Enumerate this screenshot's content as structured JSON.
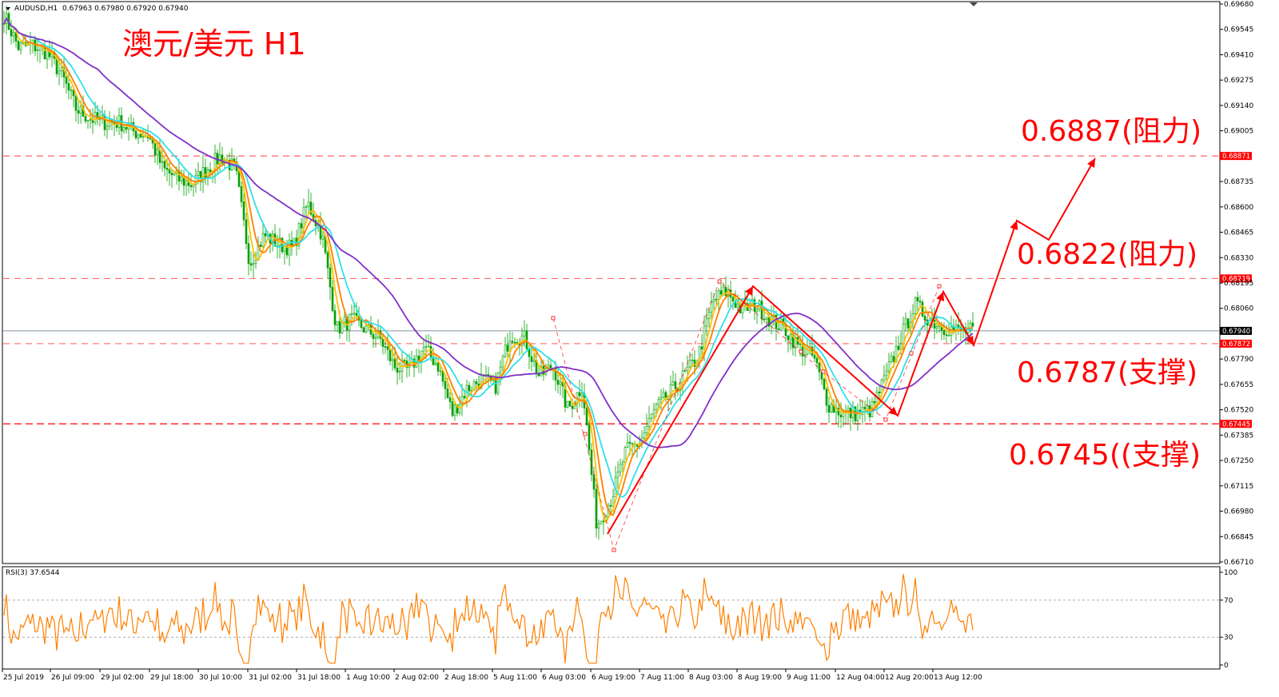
{
  "header": {
    "symbol": "AUDUSD,H1",
    "ohlc": "0.67963 0.67980 0.67920 0.67940",
    "rsi_label": "RSI(3) 37.6544"
  },
  "title": "澳元/美元 H1",
  "colors": {
    "bull": "#00a000",
    "bear": "#00a000",
    "ma_fast": "#ff7f00",
    "ma_mid": "#ffc000",
    "ma_cyan": "#30e0e8",
    "ma_slow": "#8030c8",
    "annotation": "#ff0000",
    "rsi": "#ff8000",
    "current_line": "#8090a0"
  },
  "chart_data": {
    "type": "line",
    "y_ticks": [
      "0.69680",
      "0.69545",
      "0.69410",
      "0.69275",
      "0.69140",
      "0.69005",
      "0.68735",
      "0.68600",
      "0.68465",
      "0.68330",
      "0.68195",
      "0.68060",
      "0.67790",
      "0.67655",
      "0.67520",
      "0.67385",
      "0.67250",
      "0.67115",
      "0.66980",
      "0.66845",
      "0.66710"
    ],
    "ylim": [
      0.6671,
      0.6968
    ],
    "x_ticks": [
      "25 Jul 2019",
      "26 Jul 09:00",
      "29 Jul 02:00",
      "29 Jul 18:00",
      "30 Jul 10:00",
      "31 Jul 02:00",
      "31 Jul 18:00",
      "1 Aug 10:00",
      "2 Aug 02:00",
      "2 Aug 18:00",
      "5 Aug 11:00",
      "6 Aug 03:00",
      "6 Aug 19:00",
      "7 Aug 11:00",
      "8 Aug 03:00",
      "8 Aug 19:00",
      "9 Aug 11:00",
      "12 Aug 04:00",
      "12 Aug 20:00",
      "13 Aug 12:00"
    ],
    "price_path": [
      [
        0.6962,
        0.6945
      ],
      [
        0.6946,
        0.6942
      ],
      [
        0.693,
        0.6912
      ],
      [
        0.6907,
        0.6905
      ],
      [
        0.6905,
        0.69
      ],
      [
        0.6898,
        0.688
      ],
      [
        0.6875,
        0.6872
      ],
      [
        0.688,
        0.6887
      ],
      [
        0.688,
        0.683
      ],
      [
        0.6845,
        0.684
      ],
      [
        0.6838,
        0.6862
      ],
      [
        0.6845,
        0.6795
      ],
      [
        0.68,
        0.6795
      ],
      [
        0.679,
        0.6775
      ],
      [
        0.6773,
        0.6785
      ],
      [
        0.6776,
        0.675
      ],
      [
        0.6763,
        0.6768
      ],
      [
        0.6765,
        0.6792
      ],
      [
        0.679,
        0.677
      ],
      [
        0.6775,
        0.6752
      ],
      [
        0.6765,
        0.669
      ],
      [
        0.6705,
        0.673
      ],
      [
        0.6735,
        0.6752
      ],
      [
        0.676,
        0.677
      ],
      [
        0.678,
        0.681
      ],
      [
        0.6815,
        0.6805
      ],
      [
        0.6808,
        0.68
      ],
      [
        0.6795,
        0.6785
      ],
      [
        0.678,
        0.6755
      ],
      [
        0.675,
        0.675
      ],
      [
        0.6752,
        0.677
      ],
      [
        0.679,
        0.6808
      ],
      [
        0.68,
        0.6796
      ],
      [
        0.6794,
        0.6794
      ]
    ],
    "levels": [
      {
        "value": "0.68871",
        "label": "0.6887(阻力)",
        "style": "dash-light"
      },
      {
        "value": "0.68219",
        "label": "0.6822(阻力)",
        "style": "dash-light"
      },
      {
        "value": "0.67940",
        "label": "",
        "style": "current"
      },
      {
        "value": "0.67872",
        "label": "0.6787(支撑)",
        "style": "dash-light"
      },
      {
        "value": "0.67445",
        "label": "0.6745((支撑)",
        "style": "dash-heavy"
      }
    ],
    "rsi": {
      "ylim": [
        0,
        100
      ],
      "ticks": [
        "100",
        "70",
        "30",
        "0"
      ],
      "last": 37.6544
    }
  }
}
